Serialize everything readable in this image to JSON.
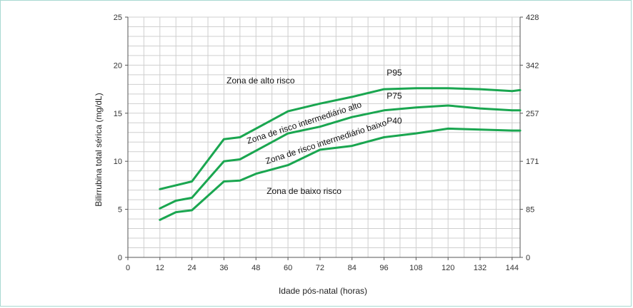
{
  "chart_data": {
    "type": "line",
    "xlabel": "Idade pós-natal (horas)",
    "ylabel": "Bilirrubina total sérica (mg/dL)",
    "xlim": [
      0,
      147
    ],
    "ylim": [
      0,
      25
    ],
    "x_ticks": [
      0,
      12,
      24,
      36,
      48,
      60,
      72,
      84,
      96,
      108,
      120,
      132,
      144
    ],
    "y_ticks": [
      0,
      5,
      10,
      15,
      20,
      25
    ],
    "y2_ticks": [
      {
        "value": 0,
        "label": "0"
      },
      {
        "value": 5,
        "label": "85"
      },
      {
        "value": 10,
        "label": "171"
      },
      {
        "value": 15,
        "label": "257"
      },
      {
        "value": 20,
        "label": "342"
      },
      {
        "value": 25,
        "label": "428"
      }
    ],
    "grid": true,
    "line_color": "#1aa650",
    "series": [
      {
        "name": "P95",
        "points": [
          [
            12,
            7.1
          ],
          [
            24,
            7.9
          ],
          [
            36,
            12.3
          ],
          [
            42,
            12.5
          ],
          [
            60,
            15.2
          ],
          [
            72,
            16.0
          ],
          [
            84,
            16.7
          ],
          [
            96,
            17.5
          ],
          [
            108,
            17.6
          ],
          [
            120,
            17.6
          ],
          [
            132,
            17.5
          ],
          [
            144,
            17.3
          ],
          [
            147,
            17.4
          ]
        ]
      },
      {
        "name": "P75",
        "points": [
          [
            12,
            5.1
          ],
          [
            18,
            5.9
          ],
          [
            24,
            6.2
          ],
          [
            36,
            10.0
          ],
          [
            42,
            10.2
          ],
          [
            60,
            12.9
          ],
          [
            72,
            13.6
          ],
          [
            84,
            14.6
          ],
          [
            96,
            15.3
          ],
          [
            108,
            15.6
          ],
          [
            120,
            15.8
          ],
          [
            132,
            15.5
          ],
          [
            144,
            15.3
          ],
          [
            147,
            15.3
          ]
        ]
      },
      {
        "name": "P40",
        "points": [
          [
            12,
            3.9
          ],
          [
            18,
            4.7
          ],
          [
            24,
            4.9
          ],
          [
            36,
            7.9
          ],
          [
            42,
            8.0
          ],
          [
            48,
            8.7
          ],
          [
            60,
            9.6
          ],
          [
            72,
            11.2
          ],
          [
            84,
            11.6
          ],
          [
            96,
            12.5
          ],
          [
            108,
            12.9
          ],
          [
            120,
            13.4
          ],
          [
            132,
            13.3
          ],
          [
            144,
            13.2
          ],
          [
            147,
            13.2
          ]
        ]
      }
    ],
    "annotations": [
      {
        "text": "Zona de alto risco",
        "x": 37,
        "y": 18.1,
        "angle": 0
      },
      {
        "text": "P95",
        "x": 97,
        "y": 18.9,
        "angle": 0
      },
      {
        "text": "P75",
        "x": 97,
        "y": 16.5,
        "angle": 0
      },
      {
        "text": "P40",
        "x": 97,
        "y": 13.9,
        "angle": 0
      },
      {
        "text": "Zona de risco intermediário alto",
        "x": 45,
        "y": 11.8,
        "angle": -18
      },
      {
        "text": "Zona de risco intermediário baixo",
        "x": 52,
        "y": 9.7,
        "angle": -18
      },
      {
        "text": "Zona de baixo risco",
        "x": 52,
        "y": 6.6,
        "angle": 0
      }
    ]
  }
}
